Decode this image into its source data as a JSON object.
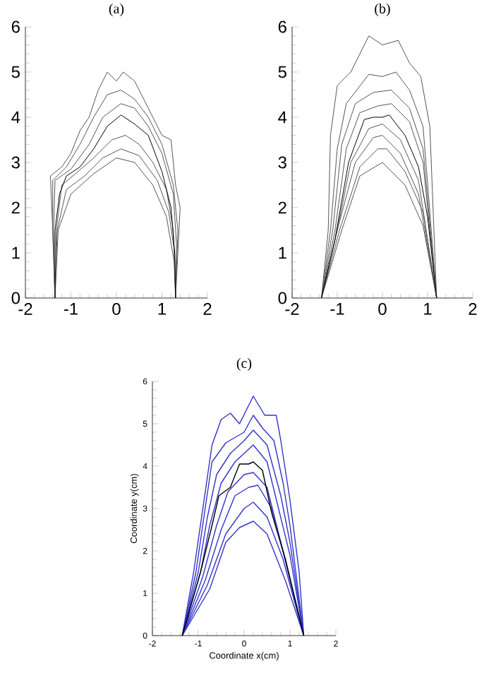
{
  "chart_data": [
    {
      "type": "line",
      "title": "(a)",
      "xlim": [
        -2,
        2
      ],
      "ylim": [
        0,
        6
      ],
      "xticks": [
        -2,
        -1,
        0,
        1,
        2
      ],
      "yticks": [
        0,
        1,
        2,
        3,
        4,
        5,
        6
      ],
      "series": [
        {
          "color": "#555555",
          "x": [
            -1.35,
            -1.4,
            -1.45,
            -1.2,
            -1.0,
            -0.8,
            -0.6,
            -0.4,
            -0.2,
            0,
            0.15,
            0.4,
            0.6,
            0.8,
            1.0,
            1.2,
            1.3,
            1.4,
            1.35,
            1.3
          ],
          "values": [
            0,
            1.5,
            2.7,
            2.9,
            3.2,
            3.7,
            4.0,
            4.6,
            5.0,
            4.8,
            5.0,
            4.8,
            4.4,
            4.0,
            3.6,
            3.5,
            2.5,
            2.0,
            1.0,
            0
          ]
        },
        {
          "color": "#555555",
          "x": [
            -1.35,
            -1.4,
            -1.4,
            -1.1,
            -0.8,
            -0.5,
            -0.2,
            0.1,
            0.4,
            0.7,
            1.0,
            1.25,
            1.35,
            1.3
          ],
          "values": [
            0,
            1.5,
            2.6,
            2.9,
            3.4,
            4.0,
            4.5,
            4.6,
            4.4,
            4.0,
            3.4,
            2.5,
            1.5,
            0
          ]
        },
        {
          "color": "#555555",
          "x": [
            -1.35,
            -1.38,
            -1.35,
            -1.0,
            -0.6,
            -0.3,
            0.1,
            0.4,
            0.7,
            1.0,
            1.25,
            1.32,
            1.3
          ],
          "values": [
            0,
            1.5,
            2.6,
            2.85,
            3.4,
            4.0,
            4.3,
            4.2,
            3.8,
            3.2,
            2.3,
            1.2,
            0
          ]
        },
        {
          "color": "#555555",
          "x": [
            -1.35,
            -1.32,
            -1.2,
            -0.9,
            -0.5,
            -0.1,
            0.2,
            0.5,
            0.8,
            1.1,
            1.25,
            1.3
          ],
          "values": [
            0,
            1.5,
            2.5,
            2.75,
            3.1,
            3.5,
            3.6,
            3.4,
            3.0,
            2.4,
            1.5,
            0
          ]
        },
        {
          "color": "#555555",
          "x": [
            -1.35,
            -1.3,
            -1.1,
            -0.7,
            -0.3,
            0.1,
            0.5,
            0.9,
            1.15,
            1.28,
            1.3
          ],
          "values": [
            0,
            1.5,
            2.4,
            2.7,
            3.1,
            3.3,
            3.15,
            2.6,
            1.9,
            1.0,
            0
          ]
        },
        {
          "color": "#555555",
          "x": [
            -1.35,
            -1.28,
            -1.0,
            -0.5,
            0,
            0.4,
            0.8,
            1.1,
            1.27,
            1.3
          ],
          "values": [
            0,
            1.5,
            2.3,
            2.75,
            3.1,
            3.0,
            2.5,
            1.8,
            0.8,
            0
          ]
        },
        {
          "color": "#000000",
          "x": [
            -1.35,
            -1.35,
            -1.25,
            -1.1,
            -0.8,
            -0.5,
            -0.2,
            0.1,
            0.4,
            0.7,
            1.0,
            1.2,
            1.28,
            1.3
          ],
          "values": [
            0,
            1.5,
            2.3,
            2.7,
            2.9,
            3.3,
            3.8,
            4.05,
            3.85,
            3.6,
            2.8,
            2.0,
            1.0,
            0
          ]
        }
      ]
    },
    {
      "type": "line",
      "title": "(b)",
      "xlim": [
        -2,
        2
      ],
      "ylim": [
        0,
        6
      ],
      "xticks": [
        -2,
        -1,
        0,
        1,
        2
      ],
      "yticks": [
        0,
        1,
        2,
        3,
        4,
        5,
        6
      ],
      "series": [
        {
          "color": "#555555",
          "x": [
            -1.35,
            -1.2,
            -1.15,
            -1.0,
            -0.7,
            -0.3,
            0,
            0.35,
            0.6,
            0.85,
            1.05,
            1.2
          ],
          "values": [
            0,
            1.5,
            3.6,
            4.7,
            5.0,
            5.8,
            5.6,
            5.7,
            5.2,
            4.9,
            3.8,
            0
          ]
        },
        {
          "color": "#555555",
          "x": [
            -1.35,
            -1.15,
            -1.0,
            -0.8,
            -0.3,
            0,
            0.3,
            0.6,
            0.9,
            1.2
          ],
          "values": [
            0,
            1.5,
            3.3,
            4.3,
            4.95,
            4.9,
            5.0,
            4.6,
            3.8,
            0
          ]
        },
        {
          "color": "#555555",
          "x": [
            -1.35,
            -1.1,
            -0.9,
            -0.6,
            -0.2,
            0.2,
            0.6,
            0.9,
            1.2
          ],
          "values": [
            0,
            1.5,
            3.4,
            4.3,
            4.55,
            4.6,
            4.2,
            3.3,
            0
          ]
        },
        {
          "color": "#555555",
          "x": [
            -1.35,
            -1.05,
            -0.8,
            -0.5,
            -0.1,
            0.2,
            0.6,
            0.9,
            1.2
          ],
          "values": [
            0,
            1.5,
            3.3,
            4.1,
            4.25,
            4.3,
            3.9,
            3.0,
            0
          ]
        },
        {
          "color": "#555555",
          "x": [
            -1.35,
            -1.0,
            -0.7,
            -0.3,
            0,
            0.4,
            0.8,
            1.2
          ],
          "values": [
            0,
            1.5,
            3.0,
            3.75,
            3.85,
            3.5,
            2.6,
            0
          ]
        },
        {
          "color": "#555555",
          "x": [
            -1.35,
            -1.0,
            -0.6,
            -0.2,
            0,
            0.4,
            0.8,
            1.2
          ],
          "values": [
            0,
            1.5,
            3.0,
            3.55,
            3.6,
            3.2,
            2.3,
            0
          ]
        },
        {
          "color": "#555555",
          "x": [
            -1.35,
            -0.95,
            -0.5,
            -0.1,
            0.1,
            0.5,
            0.9,
            1.2
          ],
          "values": [
            0,
            1.5,
            2.9,
            3.3,
            3.3,
            2.8,
            1.9,
            0
          ]
        },
        {
          "color": "#555555",
          "x": [
            -1.35,
            -0.9,
            -0.5,
            0,
            0.5,
            0.9,
            1.2
          ],
          "values": [
            0,
            1.5,
            2.7,
            3.0,
            2.5,
            1.6,
            0
          ]
        },
        {
          "color": "#000000",
          "x": [
            -1.35,
            -1.05,
            -0.75,
            -0.4,
            -0.2,
            0,
            0.15,
            0.5,
            0.8,
            1.0,
            1.2
          ],
          "values": [
            0,
            1.3,
            3.0,
            3.95,
            4.0,
            4.0,
            4.05,
            3.6,
            2.9,
            1.8,
            0
          ]
        }
      ]
    },
    {
      "type": "line",
      "title": "(c)",
      "xlabel": "Coordinate x(cm)",
      "ylabel": "Coordinate y(cm)",
      "xlim": [
        -2,
        2
      ],
      "ylim": [
        0,
        6
      ],
      "xticks": [
        -2,
        -1,
        0,
        1,
        2
      ],
      "yticks": [
        0,
        1,
        2,
        3,
        4,
        5,
        6
      ],
      "series": [
        {
          "color": "#3333cc",
          "x": [
            -1.35,
            -1.1,
            -0.9,
            -0.7,
            -0.5,
            -0.3,
            -0.1,
            0.2,
            0.45,
            0.7,
            0.8,
            1.0,
            1.2,
            1.3
          ],
          "values": [
            0,
            1.5,
            3.0,
            4.5,
            5.1,
            5.25,
            5.0,
            5.65,
            5.2,
            5.2,
            4.6,
            3.2,
            1.5,
            0
          ]
        },
        {
          "color": "#3333cc",
          "x": [
            -1.35,
            -1.05,
            -0.85,
            -0.7,
            -0.4,
            0,
            0.2,
            0.4,
            0.65,
            0.85,
            1.0,
            1.3
          ],
          "values": [
            0,
            1.5,
            3.0,
            4.1,
            4.55,
            4.8,
            5.2,
            4.9,
            4.6,
            3.6,
            2.6,
            0
          ]
        },
        {
          "color": "#3333cc",
          "x": [
            -1.35,
            -1.0,
            -0.8,
            -0.6,
            -0.3,
            0,
            0.2,
            0.5,
            0.8,
            1.0,
            1.3
          ],
          "values": [
            0,
            1.5,
            2.8,
            3.8,
            4.3,
            4.6,
            4.85,
            4.5,
            3.3,
            2.2,
            0
          ]
        },
        {
          "color": "#3333cc",
          "x": [
            -1.35,
            -0.95,
            -0.75,
            -0.5,
            -0.2,
            0.2,
            0.5,
            0.75,
            1.0,
            1.3
          ],
          "values": [
            0,
            1.5,
            2.6,
            3.6,
            4.1,
            4.5,
            4.1,
            3.0,
            1.9,
            0
          ]
        },
        {
          "color": "#3333cc",
          "x": [
            -1.35,
            -0.9,
            -0.6,
            -0.35,
            0,
            0.2,
            0.5,
            0.8,
            1.3
          ],
          "values": [
            0,
            1.4,
            2.6,
            3.4,
            3.8,
            3.85,
            3.5,
            2.2,
            0
          ]
        },
        {
          "color": "#3333cc",
          "x": [
            -1.35,
            -0.85,
            -0.5,
            -0.2,
            0.1,
            0.3,
            0.6,
            0.9,
            1.3
          ],
          "values": [
            0,
            1.3,
            2.5,
            3.3,
            3.5,
            3.55,
            3.0,
            1.8,
            0
          ]
        },
        {
          "color": "#3333cc",
          "x": [
            -1.35,
            -0.8,
            -0.4,
            0,
            0.2,
            0.5,
            0.85,
            1.3
          ],
          "values": [
            0,
            1.2,
            2.4,
            3.0,
            3.15,
            2.8,
            1.8,
            0
          ]
        },
        {
          "color": "#3333cc",
          "x": [
            -1.35,
            -0.75,
            -0.4,
            -0.1,
            0.2,
            0.5,
            0.9,
            1.3
          ],
          "values": [
            0,
            1.1,
            2.2,
            2.55,
            2.7,
            2.4,
            1.3,
            0
          ]
        },
        {
          "color": "#000000",
          "x": [
            -1.35,
            -0.95,
            -0.7,
            -0.55,
            -0.3,
            -0.1,
            0.1,
            0.2,
            0.4,
            0.6,
            0.9,
            1.3
          ],
          "values": [
            0,
            1.5,
            2.6,
            3.3,
            3.5,
            4.05,
            4.05,
            4.1,
            3.9,
            2.9,
            1.8,
            0
          ]
        }
      ]
    }
  ]
}
